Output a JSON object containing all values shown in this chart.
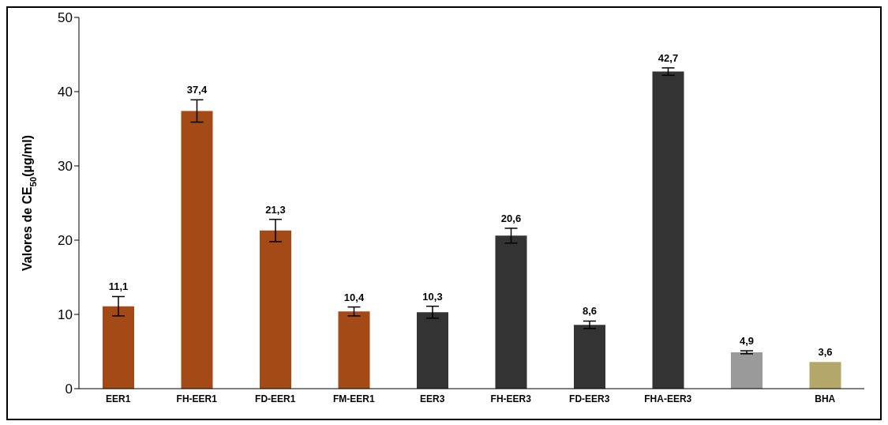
{
  "chart_data": {
    "type": "bar",
    "ylabel": "Valores de CE$_{50}$(µg/ml)",
    "categories": [
      "EER1",
      "FH-EER1",
      "FD-EER1",
      "FM-EER1",
      "EER3",
      "FH-EER3",
      "FD-EER3",
      "FHA-EER3",
      null,
      "BHA"
    ],
    "values": [
      11.1,
      37.4,
      21.3,
      10.4,
      10.3,
      20.6,
      8.6,
      42.7,
      4.9,
      3.6
    ],
    "errors": [
      1.3,
      1.5,
      1.5,
      0.6,
      0.8,
      1.0,
      0.5,
      0.5,
      0.2,
      null
    ],
    "colors": [
      "#a34a17",
      "#a34a17",
      "#a34a17",
      "#a34a17",
      "#333333",
      "#333333",
      "#333333",
      "#333333",
      "#9a9a9a",
      "#b3a86a"
    ],
    "value_labels": [
      "11,1",
      "37,4",
      "21,3",
      "10,4",
      "10,3",
      "20,6",
      "8,6",
      "42,7",
      "4,9",
      "3,6"
    ],
    "ylim": [
      0,
      50
    ],
    "yticks": [
      0,
      10,
      20,
      30,
      40,
      50
    ],
    "grid": false,
    "legend": false
  }
}
